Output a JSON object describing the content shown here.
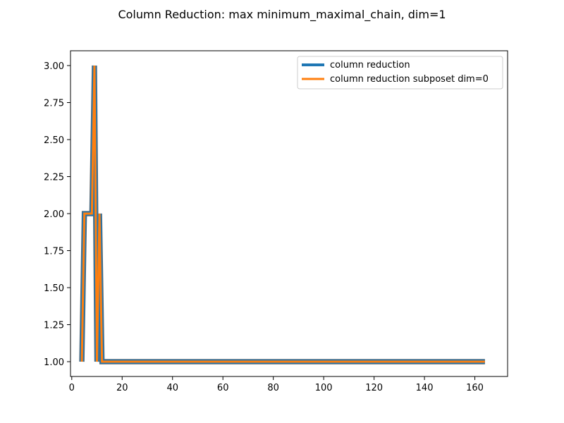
{
  "chart_data": {
    "type": "line",
    "title": "Column Reduction: max minimum_maximal_chain, dim=1",
    "xlabel": "",
    "ylabel": "",
    "xlim": [
      -0.5,
      173.0
    ],
    "ylim": [
      0.9,
      3.1
    ],
    "x_ticks": [
      0,
      20,
      40,
      60,
      80,
      100,
      120,
      140,
      160
    ],
    "y_ticks": [
      1.0,
      1.25,
      1.5,
      1.75,
      2.0,
      2.25,
      2.5,
      2.75,
      3.0
    ],
    "grid": false,
    "legend_position": "top-right",
    "series": [
      {
        "name": "column reduction",
        "color": "#1f77b4",
        "x": [
          4,
          5,
          6,
          7,
          8,
          9,
          10,
          11,
          12,
          13,
          164
        ],
        "y": [
          1,
          2,
          2,
          2,
          2,
          3,
          1,
          2,
          1,
          1,
          1
        ]
      },
      {
        "name": "column reduction subposet dim=0",
        "color": "#ff7f0e",
        "x": [
          4,
          5,
          6,
          7,
          8,
          9,
          10,
          11,
          12,
          13,
          164
        ],
        "y": [
          1,
          2,
          2,
          2,
          2,
          3,
          1,
          2,
          1,
          1,
          1
        ]
      }
    ]
  }
}
